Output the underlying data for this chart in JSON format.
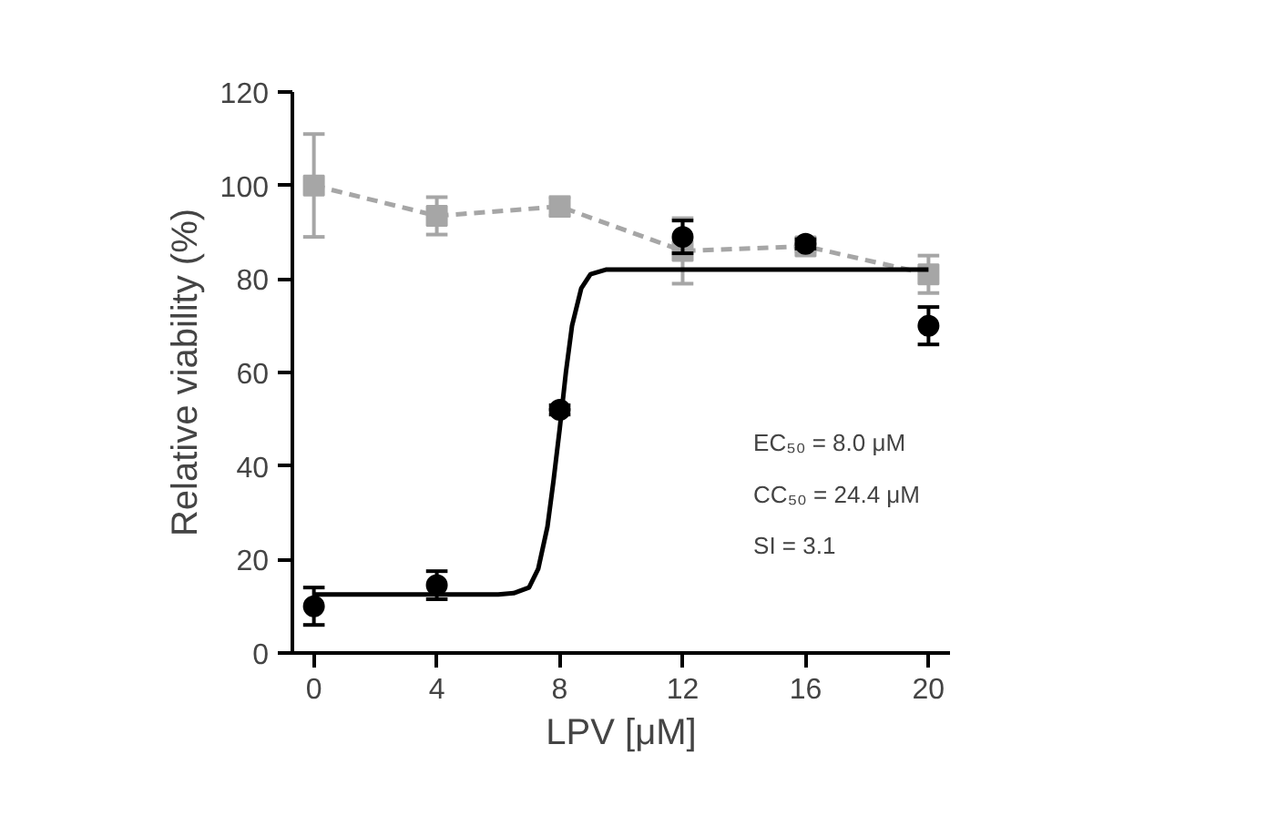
{
  "chart_data": {
    "type": "scatter",
    "xlabel": "LPV [μM]",
    "ylabel": "Relative viability (%)",
    "x": [
      0,
      4,
      8,
      12,
      16,
      20
    ],
    "xlim": [
      -0.7,
      20.7
    ],
    "xticks": [
      0,
      4,
      8,
      12,
      16,
      20
    ],
    "ylim": [
      0,
      120
    ],
    "yticks": [
      0,
      20,
      40,
      60,
      80,
      100,
      120
    ],
    "grid": false,
    "series": [
      {
        "type": "line",
        "color": "#a6a6a6",
        "marker": "square",
        "line_style": "dashed",
        "values": [
          100,
          93.5,
          95.5,
          86,
          87,
          81
        ],
        "errors": [
          11,
          4,
          2,
          7,
          1,
          4
        ]
      },
      {
        "type": "line",
        "color": "#000000",
        "marker": "none",
        "line_style": "solid",
        "x": [
          0,
          6,
          6.5,
          7,
          7.3,
          7.6,
          7.8,
          8,
          8.2,
          8.4,
          8.7,
          9,
          9.5,
          10,
          20
        ],
        "values": [
          12.5,
          12.5,
          12.8,
          14,
          18,
          27,
          37,
          48,
          60,
          70,
          78,
          81,
          82,
          82,
          82
        ]
      },
      {
        "color": "#000000",
        "marker": "circle",
        "values": [
          10,
          14.5,
          52,
          89,
          87.5,
          70
        ],
        "errors": [
          4,
          3,
          1,
          3.5,
          1,
          4
        ]
      }
    ],
    "annotations": [
      {
        "text": "EC₅₀ = 8.0 μM"
      },
      {
        "text": "CC₅₀ = 24.4 μM"
      },
      {
        "text": "SI = 3.1"
      }
    ]
  }
}
